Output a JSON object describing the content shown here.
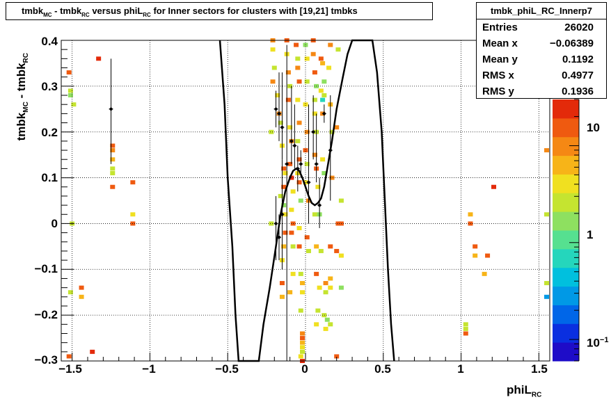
{
  "title": {
    "p1": "tmbk",
    "s1": "MC",
    "p2": " - tmbk",
    "s2": "RC",
    "p3": " versus phiL",
    "s3": "RC",
    "p4": " for Inner sectors for clusters with [19,21] tmbks"
  },
  "stats": {
    "name": "tmbk_phiL_RC_Innerp7",
    "rows": [
      {
        "key": "Entries",
        "value": "26020"
      },
      {
        "key": "Mean x",
        "value": "−0.06389"
      },
      {
        "key": "Mean y",
        "value": "0.1192"
      },
      {
        "key": "RMS x",
        "value": "0.4977"
      },
      {
        "key": "RMS y",
        "value": "0.1936"
      }
    ]
  },
  "colors": {
    "frame": "#000000",
    "grid": "#000000",
    "palette": [
      "#1e0cc8",
      "#0a2fe0",
      "#0066e8",
      "#0099e6",
      "#00c0de",
      "#25d6bc",
      "#56e090",
      "#8ee060",
      "#c5e430",
      "#f0e020",
      "#f7b418",
      "#f58814",
      "#ef5a10",
      "#e32a0a"
    ]
  },
  "chart_data": {
    "type": "heatmap",
    "xlabel": {
      "main": "phiL",
      "sub": "RC"
    },
    "ylabel": {
      "main1": "tmbk",
      "sub1": "MC",
      "main2": " - tmbk",
      "sub2": "RC"
    },
    "xlim": [
      -1.57,
      1.57
    ],
    "ylim": [
      -0.3,
      0.4
    ],
    "x_ticks": [
      {
        "v": -1.5,
        "label": "−1.5"
      },
      {
        "v": -1,
        "label": "−1"
      },
      {
        "v": -0.5,
        "label": "−0.5"
      },
      {
        "v": 0,
        "label": "0"
      },
      {
        "v": 0.5,
        "label": "0.5"
      },
      {
        "v": 1,
        "label": "1"
      },
      {
        "v": 1.5,
        "label": "1.5"
      }
    ],
    "y_ticks": [
      {
        "v": -0.3,
        "label": "−0.3"
      },
      {
        "v": -0.2,
        "label": "−0.2"
      },
      {
        "v": -0.1,
        "label": "−0.1"
      },
      {
        "v": 0,
        "label": "0"
      },
      {
        "v": 0.1,
        "label": "0.1"
      },
      {
        "v": 0.2,
        "label": "0.2"
      },
      {
        "v": 0.3,
        "label": "0.3"
      },
      {
        "v": 0.4,
        "label": "0.4"
      }
    ],
    "z_scale": "log",
    "zlim": [
      0.06,
      30
    ],
    "z_ticks": [
      {
        "v": 0.1,
        "base": "10",
        "exp": "−1"
      },
      {
        "v": 1,
        "base": "1",
        "exp": ""
      },
      {
        "v": 10,
        "base": "10",
        "exp": ""
      }
    ],
    "grid": true,
    "cells": [
      [
        -1.52,
        0.33,
        "#ef5a10"
      ],
      [
        -1.51,
        0.29,
        "#c5e430"
      ],
      [
        -1.51,
        0.28,
        "#8ee060"
      ],
      [
        -1.49,
        0.26,
        "#c5e430"
      ],
      [
        -1.5,
        0.0,
        "#c5e430"
      ],
      [
        -1.51,
        -0.15,
        "#c5e430"
      ],
      [
        -1.52,
        -0.29,
        "#ef5a10"
      ],
      [
        -1.33,
        0.36,
        "#e32a0a"
      ],
      [
        -1.44,
        -0.14,
        "#ef5a10"
      ],
      [
        -1.44,
        -0.16,
        "#f7b418"
      ],
      [
        -1.37,
        -0.28,
        "#e32a0a"
      ],
      [
        -1.24,
        0.17,
        "#ef5a10"
      ],
      [
        -1.24,
        0.16,
        "#f58814"
      ],
      [
        -1.24,
        0.14,
        "#f7b418"
      ],
      [
        -1.24,
        0.12,
        "#c5e430"
      ],
      [
        -1.24,
        0.11,
        "#c5e430"
      ],
      [
        -1.24,
        0.08,
        "#ef5a10"
      ],
      [
        -1.11,
        0.09,
        "#ef5a10"
      ],
      [
        -1.11,
        0.02,
        "#f0e020"
      ],
      [
        -1.11,
        0.0,
        "#ef5a10"
      ],
      [
        -0.21,
        0.4,
        "#f58814"
      ],
      [
        -0.21,
        0.38,
        "#f0e020"
      ],
      [
        -0.2,
        0.34,
        "#c5e430"
      ],
      [
        -0.21,
        0.31,
        "#f58814"
      ],
      [
        -0.22,
        0.2,
        "#c5e430"
      ],
      [
        -0.18,
        0.28,
        "#f0e020"
      ],
      [
        -0.17,
        0.24,
        "#f58814"
      ],
      [
        -0.16,
        0.22,
        "#c5e430"
      ],
      [
        -0.15,
        0.17,
        "#f0e020"
      ],
      [
        -0.14,
        0.12,
        "#ef5a10"
      ],
      [
        -0.13,
        0.11,
        "#f0e020"
      ],
      [
        -0.14,
        0.08,
        "#ef5a10"
      ],
      [
        -0.14,
        0.04,
        "#8ee060"
      ],
      [
        -0.13,
        0.02,
        "#f0e020"
      ],
      [
        -0.13,
        -0.02,
        "#ef5a10"
      ],
      [
        -0.14,
        -0.05,
        "#f7b418"
      ],
      [
        -0.15,
        -0.08,
        "#f0e020"
      ],
      [
        -0.15,
        -0.13,
        "#ef5a10"
      ],
      [
        -0.15,
        -0.16,
        "#f7b418"
      ],
      [
        -0.22,
        -0.0,
        "#c5e430"
      ],
      [
        -0.16,
        0.06,
        "#c5e430"
      ],
      [
        -0.12,
        0.4,
        "#ef5a10"
      ],
      [
        -0.12,
        0.37,
        "#f0e020"
      ],
      [
        -0.11,
        0.33,
        "#f58814"
      ],
      [
        -0.1,
        0.3,
        "#c5e430"
      ],
      [
        -0.11,
        0.27,
        "#ef5a10"
      ],
      [
        -0.1,
        0.21,
        "#f0e020"
      ],
      [
        -0.09,
        0.18,
        "#f58814"
      ],
      [
        -0.1,
        0.13,
        "#ef5a10"
      ],
      [
        -0.09,
        0.1,
        "#e32a0a"
      ],
      [
        -0.08,
        0.07,
        "#f0e020"
      ],
      [
        -0.09,
        0.03,
        "#f0e020"
      ],
      [
        -0.08,
        0.0,
        "#ef5a10"
      ],
      [
        -0.09,
        -0.02,
        "#ef5a10"
      ],
      [
        -0.08,
        -0.05,
        "#c5e430"
      ],
      [
        -0.08,
        -0.11,
        "#f0e020"
      ],
      [
        -0.1,
        -0.15,
        "#f7b418"
      ],
      [
        -0.06,
        0.39,
        "#ef5a10"
      ],
      [
        -0.05,
        0.36,
        "#c5e430"
      ],
      [
        -0.05,
        0.34,
        "#f58814"
      ],
      [
        -0.04,
        0.31,
        "#ef5a10"
      ],
      [
        -0.05,
        0.27,
        "#f0e020"
      ],
      [
        -0.04,
        0.22,
        "#f58814"
      ],
      [
        -0.05,
        0.18,
        "#c5e430"
      ],
      [
        -0.04,
        0.14,
        "#ef5a10"
      ],
      [
        -0.05,
        0.11,
        "#f0e020"
      ],
      [
        -0.04,
        0.09,
        "#ef5a10"
      ],
      [
        -0.03,
        0.05,
        "#8ee060"
      ],
      [
        -0.04,
        -0.01,
        "#f0e020"
      ],
      [
        -0.04,
        -0.05,
        "#ef5a10"
      ],
      [
        -0.03,
        -0.11,
        "#c5e430"
      ],
      [
        -0.02,
        -0.13,
        "#f7b418"
      ],
      [
        -0.02,
        -0.15,
        "#f0e020"
      ],
      [
        -0.03,
        -0.19,
        "#c5e430"
      ],
      [
        -0.02,
        -0.24,
        "#f58814"
      ],
      [
        -0.02,
        -0.25,
        "#ef5a10"
      ],
      [
        -0.02,
        -0.26,
        "#f7b418"
      ],
      [
        -0.02,
        -0.27,
        "#f0e020"
      ],
      [
        -0.02,
        -0.28,
        "#c5e430"
      ],
      [
        -0.03,
        -0.29,
        "#f0e020"
      ],
      [
        -0.02,
        -0.3,
        "#e32a0a"
      ],
      [
        0.0,
        0.39,
        "#8ee060"
      ],
      [
        0.01,
        0.36,
        "#f0e020"
      ],
      [
        0.01,
        0.31,
        "#c5e430"
      ],
      [
        0.0,
        0.26,
        "#f0e020"
      ],
      [
        0.01,
        0.2,
        "#f58814"
      ],
      [
        0.0,
        0.16,
        "#ef5a10"
      ],
      [
        0.01,
        0.13,
        "#c5e430"
      ],
      [
        0.0,
        0.09,
        "#f0e020"
      ],
      [
        0.02,
        0.05,
        "#f58814"
      ],
      [
        0.01,
        -0.03,
        "#ef5a10"
      ],
      [
        0.02,
        -0.06,
        "#c5e430"
      ],
      [
        0.05,
        0.4,
        "#ef5a10"
      ],
      [
        0.05,
        0.37,
        "#f58814"
      ],
      [
        0.06,
        0.33,
        "#ef5a10"
      ],
      [
        0.07,
        0.3,
        "#8ee060"
      ],
      [
        0.06,
        0.27,
        "#c5e430"
      ],
      [
        0.06,
        0.24,
        "#f0e020"
      ],
      [
        0.07,
        0.2,
        "#c5e430"
      ],
      [
        0.06,
        0.15,
        "#f58814"
      ],
      [
        0.07,
        0.12,
        "#ef5a10"
      ],
      [
        0.08,
        0.08,
        "#f0e020"
      ],
      [
        0.06,
        0.02,
        "#c5e430"
      ],
      [
        0.09,
        0.02,
        "#8ee060"
      ],
      [
        0.07,
        -0.05,
        "#f7b418"
      ],
      [
        0.07,
        -0.11,
        "#ef5a10"
      ],
      [
        0.09,
        -0.14,
        "#f0e020"
      ],
      [
        0.08,
        -0.19,
        "#c5e430"
      ],
      [
        0.07,
        -0.22,
        "#f0e020"
      ],
      [
        0.1,
        0.36,
        "#ef5a10"
      ],
      [
        0.11,
        0.35,
        "#f7b418"
      ],
      [
        0.1,
        0.29,
        "#f0e020"
      ],
      [
        0.12,
        0.31,
        "#8ee060"
      ],
      [
        0.11,
        0.27,
        "#25d6bc"
      ],
      [
        0.12,
        0.28,
        "#c5e430"
      ],
      [
        0.11,
        0.24,
        "#f58814"
      ],
      [
        0.11,
        0.14,
        "#f0e020"
      ],
      [
        0.12,
        0.11,
        "#8ee060"
      ],
      [
        0.1,
        -0.06,
        "#c5e430"
      ],
      [
        0.13,
        -0.13,
        "#f58814"
      ],
      [
        0.13,
        -0.15,
        "#c5e430"
      ],
      [
        0.12,
        -0.2,
        "#c5e430"
      ],
      [
        0.14,
        -0.21,
        "#8ee060"
      ],
      [
        0.13,
        -0.23,
        "#f0e020"
      ],
      [
        0.16,
        0.39,
        "#f58814"
      ],
      [
        0.15,
        0.34,
        "#f0e020"
      ],
      [
        0.16,
        0.26,
        "#f7b418"
      ],
      [
        0.17,
        0.2,
        "#c5e430"
      ],
      [
        0.17,
        0.1,
        "#f58814"
      ],
      [
        0.16,
        -0.05,
        "#ef5a10"
      ],
      [
        0.16,
        -0.12,
        "#f7b418"
      ],
      [
        0.16,
        -0.14,
        "#f0e020"
      ],
      [
        0.16,
        -0.22,
        "#c5e430"
      ],
      [
        0.21,
        0.38,
        "#c5e430"
      ],
      [
        0.2,
        0.21,
        "#f58814"
      ],
      [
        0.21,
        0.0,
        "#ef5a10"
      ],
      [
        0.23,
        0.0,
        "#ef5a10"
      ],
      [
        0.2,
        -0.06,
        "#ef5a10"
      ],
      [
        0.23,
        -0.07,
        "#f0e020"
      ],
      [
        0.23,
        -0.14,
        "#8ee060"
      ],
      [
        0.2,
        -0.29,
        "#ef5a10"
      ],
      [
        0.23,
        0.05,
        "#c5e430"
      ],
      [
        1.06,
        0.02,
        "#f7b418"
      ],
      [
        1.06,
        0.0,
        "#ef5a10"
      ],
      [
        1.09,
        -0.05,
        "#ef5a10"
      ],
      [
        1.09,
        -0.07,
        "#f7b418"
      ],
      [
        1.17,
        -0.07,
        "#ef5a10"
      ],
      [
        1.15,
        -0.11,
        "#f7b418"
      ],
      [
        1.03,
        -0.22,
        "#c5e430"
      ],
      [
        1.03,
        -0.23,
        "#c5e430"
      ],
      [
        1.03,
        -0.24,
        "#ef5a10"
      ],
      [
        1.21,
        0.08,
        "#e32a0a"
      ],
      [
        1.55,
        0.16,
        "#f58814"
      ],
      [
        1.55,
        0.02,
        "#c5e430"
      ],
      [
        1.55,
        -0.13,
        "#c5e430"
      ],
      [
        1.55,
        -0.16,
        "#0099e6"
      ]
    ],
    "profile_points": [
      {
        "x": -1.25,
        "y": 0.25,
        "lo": 0.13,
        "hi": 0.36
      },
      {
        "x": -0.19,
        "y": 0.25,
        "lo": 0.21,
        "hi": 0.29
      },
      {
        "x": -0.17,
        "y": 0.24,
        "lo": 0.18,
        "hi": 0.33
      },
      {
        "x": -0.15,
        "y": 0.21,
        "lo": 0.14,
        "hi": 0.33
      },
      {
        "x": -0.12,
        "y": 0.13,
        "lo": -0.3,
        "hi": 0.39
      },
      {
        "x": -0.09,
        "y": 0.18,
        "lo": 0.13,
        "hi": 0.3
      },
      {
        "x": -0.07,
        "y": 0.17,
        "lo": 0.12,
        "hi": 0.26
      },
      {
        "x": -0.05,
        "y": 0.12,
        "lo": 0.07,
        "hi": 0.17
      },
      {
        "x": -0.03,
        "y": 0.13,
        "lo": 0.1,
        "hi": 0.16
      },
      {
        "x": 0.02,
        "y": 0.09,
        "lo": 0.0,
        "hi": 0.26
      },
      {
        "x": 0.05,
        "y": 0.2,
        "lo": 0.14,
        "hi": 0.28
      },
      {
        "x": 0.07,
        "y": 0.13,
        "lo": 0.09,
        "hi": 0.24
      },
      {
        "x": 0.09,
        "y": 0.04,
        "lo": -0.01,
        "hi": 0.1
      },
      {
        "x": 0.12,
        "y": 0.24,
        "lo": 0.22,
        "hi": 0.26
      },
      {
        "x": 0.16,
        "y": 0.16,
        "lo": 0.05,
        "hi": 0.28
      },
      {
        "x": -0.17,
        "y": -0.03,
        "lo": -0.08,
        "hi": 0.02
      },
      {
        "x": -0.15,
        "y": 0.02,
        "lo": -0.1,
        "hi": 0.14
      },
      {
        "x": -0.19,
        "y": 0.0,
        "lo": -0.08,
        "hi": 0.06
      }
    ],
    "fit_curve": [
      [
        -0.55,
        0.4
      ],
      [
        -0.52,
        0.26
      ],
      [
        -0.5,
        0.1
      ],
      [
        -0.47,
        -0.05
      ],
      [
        -0.45,
        -0.2
      ],
      [
        -0.43,
        -0.3
      ],
      [
        -0.3,
        -0.3
      ],
      [
        -0.27,
        -0.22
      ],
      [
        -0.23,
        -0.14
      ],
      [
        -0.19,
        -0.05
      ],
      [
        -0.16,
        0.02
      ],
      [
        -0.13,
        0.07
      ],
      [
        -0.1,
        0.1
      ],
      [
        -0.08,
        0.115
      ],
      [
        -0.06,
        0.12
      ],
      [
        -0.04,
        0.115
      ],
      [
        -0.02,
        0.1
      ],
      [
        0.0,
        0.08
      ],
      [
        0.02,
        0.06
      ],
      [
        0.04,
        0.045
      ],
      [
        0.06,
        0.04
      ],
      [
        0.08,
        0.045
      ],
      [
        0.1,
        0.055
      ],
      [
        0.12,
        0.08
      ],
      [
        0.14,
        0.12
      ],
      [
        0.17,
        0.18
      ],
      [
        0.2,
        0.25
      ],
      [
        0.24,
        0.32
      ],
      [
        0.27,
        0.37
      ],
      [
        0.3,
        0.4
      ],
      [
        0.43,
        0.4
      ],
      [
        0.46,
        0.33
      ],
      [
        0.49,
        0.2
      ],
      [
        0.51,
        0.05
      ],
      [
        0.53,
        -0.1
      ],
      [
        0.55,
        -0.22
      ],
      [
        0.57,
        -0.3
      ]
    ]
  }
}
